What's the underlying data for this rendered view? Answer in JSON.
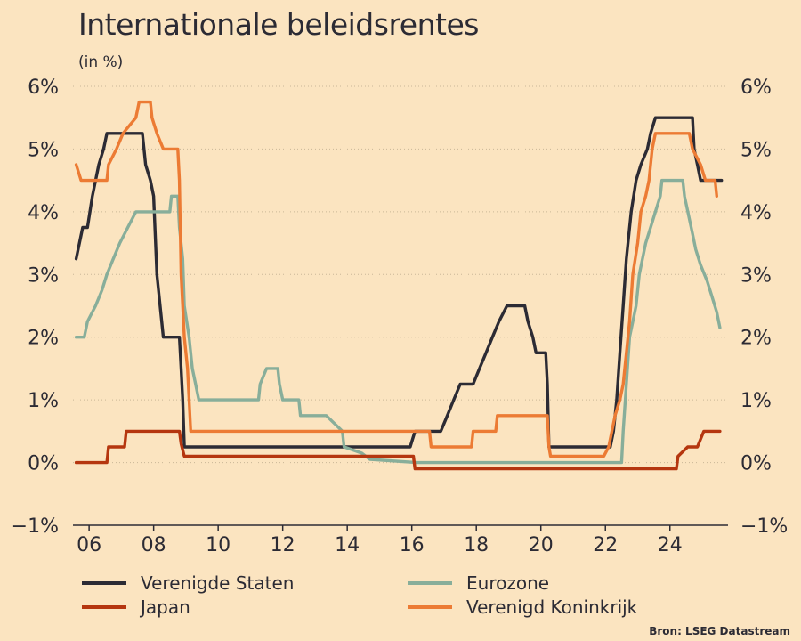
{
  "title": "Internationale beleidsrentes",
  "subtitle": "(in %)",
  "source": "Bron: LSEG Datastream",
  "chart_data": {
    "type": "line",
    "title": "Internationale beleidsrentes",
    "ylabel": "(in %)",
    "xlim": [
      2005.5,
      2025.8
    ],
    "ylim": [
      -1,
      6
    ],
    "x_ticks": [
      2006,
      2008,
      2010,
      2012,
      2014,
      2016,
      2018,
      2020,
      2022,
      2024
    ],
    "x_tick_labels": [
      "06",
      "08",
      "10",
      "12",
      "14",
      "16",
      "18",
      "20",
      "22",
      "24"
    ],
    "y_ticks": [
      6,
      5,
      4,
      3,
      2,
      1,
      0,
      -1
    ],
    "y_tick_labels": [
      "6%",
      "5%",
      "4%",
      "3%",
      "2%",
      "1%",
      "0%",
      "−1%"
    ],
    "grid": "horizontal dotted",
    "legend_position": "bottom",
    "series": [
      {
        "name": "Verenigde Staten",
        "color": "#2c2b34",
        "points": [
          [
            2005.6,
            3.25
          ],
          [
            2005.8,
            3.75
          ],
          [
            2005.95,
            3.75
          ],
          [
            2006.1,
            4.25
          ],
          [
            2006.3,
            4.75
          ],
          [
            2006.45,
            5.0
          ],
          [
            2006.55,
            5.25
          ],
          [
            2007.65,
            5.25
          ],
          [
            2007.75,
            4.75
          ],
          [
            2007.9,
            4.5
          ],
          [
            2008.0,
            4.25
          ],
          [
            2008.1,
            3.0
          ],
          [
            2008.25,
            2.25
          ],
          [
            2008.3,
            2.0
          ],
          [
            2008.8,
            2.0
          ],
          [
            2008.85,
            1.5
          ],
          [
            2008.9,
            1.0
          ],
          [
            2008.95,
            0.25
          ],
          [
            2015.95,
            0.25
          ],
          [
            2016.1,
            0.5
          ],
          [
            2016.9,
            0.5
          ],
          [
            2017.1,
            0.75
          ],
          [
            2017.3,
            1.0
          ],
          [
            2017.5,
            1.25
          ],
          [
            2017.9,
            1.25
          ],
          [
            2018.1,
            1.5
          ],
          [
            2018.3,
            1.75
          ],
          [
            2018.5,
            2.0
          ],
          [
            2018.7,
            2.25
          ],
          [
            2018.95,
            2.5
          ],
          [
            2019.5,
            2.5
          ],
          [
            2019.6,
            2.25
          ],
          [
            2019.75,
            2.0
          ],
          [
            2019.85,
            1.75
          ],
          [
            2020.15,
            1.75
          ],
          [
            2020.2,
            1.25
          ],
          [
            2020.25,
            0.25
          ],
          [
            2022.15,
            0.25
          ],
          [
            2022.25,
            0.5
          ],
          [
            2022.35,
            1.0
          ],
          [
            2022.45,
            1.75
          ],
          [
            2022.55,
            2.5
          ],
          [
            2022.65,
            3.25
          ],
          [
            2022.8,
            4.0
          ],
          [
            2022.95,
            4.5
          ],
          [
            2023.1,
            4.75
          ],
          [
            2023.3,
            5.0
          ],
          [
            2023.4,
            5.25
          ],
          [
            2023.55,
            5.5
          ],
          [
            2024.7,
            5.5
          ],
          [
            2024.75,
            5.0
          ],
          [
            2024.85,
            4.75
          ],
          [
            2024.95,
            4.5
          ],
          [
            2025.6,
            4.5
          ]
        ]
      },
      {
        "name": "Eurozone",
        "color": "#88ae9a",
        "points": [
          [
            2005.6,
            2.0
          ],
          [
            2005.85,
            2.0
          ],
          [
            2005.95,
            2.25
          ],
          [
            2006.2,
            2.5
          ],
          [
            2006.4,
            2.75
          ],
          [
            2006.55,
            3.0
          ],
          [
            2006.75,
            3.25
          ],
          [
            2006.95,
            3.5
          ],
          [
            2007.2,
            3.75
          ],
          [
            2007.45,
            4.0
          ],
          [
            2008.5,
            4.0
          ],
          [
            2008.55,
            4.25
          ],
          [
            2008.75,
            4.25
          ],
          [
            2008.8,
            3.75
          ],
          [
            2008.9,
            3.25
          ],
          [
            2008.95,
            2.5
          ],
          [
            2009.1,
            2.0
          ],
          [
            2009.2,
            1.5
          ],
          [
            2009.3,
            1.25
          ],
          [
            2009.4,
            1.0
          ],
          [
            2011.25,
            1.0
          ],
          [
            2011.3,
            1.25
          ],
          [
            2011.5,
            1.5
          ],
          [
            2011.85,
            1.5
          ],
          [
            2011.9,
            1.25
          ],
          [
            2012.0,
            1.0
          ],
          [
            2012.5,
            1.0
          ],
          [
            2012.55,
            0.75
          ],
          [
            2013.35,
            0.75
          ],
          [
            2013.85,
            0.5
          ],
          [
            2013.9,
            0.25
          ],
          [
            2014.45,
            0.15
          ],
          [
            2014.7,
            0.05
          ],
          [
            2016.15,
            0.0
          ],
          [
            2022.5,
            0.0
          ],
          [
            2022.55,
            0.5
          ],
          [
            2022.65,
            1.25
          ],
          [
            2022.75,
            2.0
          ],
          [
            2022.95,
            2.5
          ],
          [
            2023.05,
            3.0
          ],
          [
            2023.25,
            3.5
          ],
          [
            2023.4,
            3.75
          ],
          [
            2023.55,
            4.0
          ],
          [
            2023.7,
            4.25
          ],
          [
            2023.75,
            4.5
          ],
          [
            2024.4,
            4.5
          ],
          [
            2024.45,
            4.25
          ],
          [
            2024.7,
            3.65
          ],
          [
            2024.8,
            3.4
          ],
          [
            2024.95,
            3.15
          ],
          [
            2025.15,
            2.9
          ],
          [
            2025.3,
            2.65
          ],
          [
            2025.45,
            2.4
          ],
          [
            2025.55,
            2.15
          ]
        ]
      },
      {
        "name": "Japan",
        "color": "#b5360f",
        "points": [
          [
            2005.6,
            0.0
          ],
          [
            2006.55,
            0.0
          ],
          [
            2006.6,
            0.25
          ],
          [
            2007.1,
            0.25
          ],
          [
            2007.15,
            0.5
          ],
          [
            2008.8,
            0.5
          ],
          [
            2008.85,
            0.3
          ],
          [
            2008.95,
            0.1
          ],
          [
            2016.05,
            0.1
          ],
          [
            2016.1,
            -0.1
          ],
          [
            2024.2,
            -0.1
          ],
          [
            2024.25,
            0.1
          ],
          [
            2024.55,
            0.25
          ],
          [
            2024.85,
            0.25
          ],
          [
            2025.05,
            0.5
          ],
          [
            2025.55,
            0.5
          ]
        ]
      },
      {
        "name": "Verenigd Koninkrijk",
        "color": "#ec7b34",
        "points": [
          [
            2005.6,
            4.75
          ],
          [
            2005.75,
            4.5
          ],
          [
            2006.55,
            4.5
          ],
          [
            2006.6,
            4.75
          ],
          [
            2006.85,
            5.0
          ],
          [
            2007.05,
            5.25
          ],
          [
            2007.45,
            5.5
          ],
          [
            2007.55,
            5.75
          ],
          [
            2007.9,
            5.75
          ],
          [
            2007.95,
            5.5
          ],
          [
            2008.1,
            5.25
          ],
          [
            2008.3,
            5.0
          ],
          [
            2008.75,
            5.0
          ],
          [
            2008.8,
            4.5
          ],
          [
            2008.85,
            3.0
          ],
          [
            2008.95,
            2.0
          ],
          [
            2009.05,
            1.5
          ],
          [
            2009.15,
            0.5
          ],
          [
            2016.55,
            0.5
          ],
          [
            2016.6,
            0.25
          ],
          [
            2017.85,
            0.25
          ],
          [
            2017.9,
            0.5
          ],
          [
            2018.6,
            0.5
          ],
          [
            2018.65,
            0.75
          ],
          [
            2020.2,
            0.75
          ],
          [
            2020.25,
            0.25
          ],
          [
            2020.3,
            0.1
          ],
          [
            2021.95,
            0.1
          ],
          [
            2022.1,
            0.25
          ],
          [
            2022.2,
            0.5
          ],
          [
            2022.3,
            0.75
          ],
          [
            2022.45,
            1.0
          ],
          [
            2022.55,
            1.25
          ],
          [
            2022.65,
            1.75
          ],
          [
            2022.75,
            2.25
          ],
          [
            2022.85,
            3.0
          ],
          [
            2023.0,
            3.5
          ],
          [
            2023.1,
            4.0
          ],
          [
            2023.25,
            4.25
          ],
          [
            2023.35,
            4.5
          ],
          [
            2023.45,
            5.0
          ],
          [
            2023.55,
            5.25
          ],
          [
            2024.6,
            5.25
          ],
          [
            2024.7,
            5.0
          ],
          [
            2024.95,
            4.75
          ],
          [
            2025.1,
            4.5
          ],
          [
            2025.4,
            4.5
          ],
          [
            2025.45,
            4.25
          ]
        ]
      }
    ]
  }
}
